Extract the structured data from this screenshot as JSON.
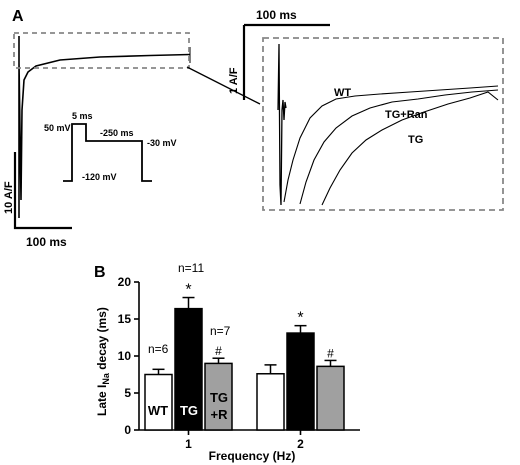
{
  "panel_a": {
    "letter": "A",
    "scale_time_left": "100 ms",
    "scale_current_left": "10 A/F",
    "scale_time_right": "100 ms",
    "scale_current_right": "1 A/F",
    "protocol": {
      "v_hold": "-120 mV",
      "v_step1": "50 mV",
      "t_step1": "5 ms",
      "t_step2": "-250 ms",
      "v_step2": "-30 mV"
    },
    "trace_labels": {
      "wt": "WT",
      "tg_ran": "TG+Ran",
      "tg": "TG"
    }
  },
  "panel_b": {
    "letter": "B",
    "ylabel_prefix": "Late I",
    "ylabel_sub": "Na",
    "ylabel_suffix": " decay (ms)",
    "xlabel": "Frequency (Hz)",
    "bar_labels": {
      "wt": "WT",
      "tg": "TG",
      "tgr_line1": "TG",
      "tgr_line2": "+R"
    },
    "n_labels": {
      "wt": "n=6",
      "tg": "n=11",
      "tgr": "n=7"
    },
    "sig_star": "*",
    "sig_hash": "#",
    "colors": {
      "wt": "#ffffff",
      "tg": "#000000",
      "tgr": "#a0a0a0"
    }
  },
  "chart_data": {
    "type": "bar",
    "categories": [
      "1",
      "2"
    ],
    "series": [
      {
        "name": "WT",
        "values": [
          7.5,
          7.6
        ],
        "errors": [
          0.7,
          1.2
        ]
      },
      {
        "name": "TG",
        "values": [
          16.4,
          13.1
        ],
        "errors": [
          1.5,
          1.0
        ]
      },
      {
        "name": "TG+R",
        "values": [
          9.0,
          8.6
        ],
        "errors": [
          0.7,
          0.8
        ]
      }
    ],
    "annotations": [
      {
        "category": "1",
        "series": "TG",
        "text": "*"
      },
      {
        "category": "1",
        "series": "TG+R",
        "text": "#"
      },
      {
        "category": "2",
        "series": "TG",
        "text": "*"
      },
      {
        "category": "2",
        "series": "TG+R",
        "text": "#"
      }
    ],
    "ylim": [
      0,
      20
    ],
    "yticks": [
      0,
      5,
      10,
      15,
      20
    ],
    "xlabel": "Frequency (Hz)",
    "ylabel": "Late INa decay (ms)",
    "grid": false
  }
}
